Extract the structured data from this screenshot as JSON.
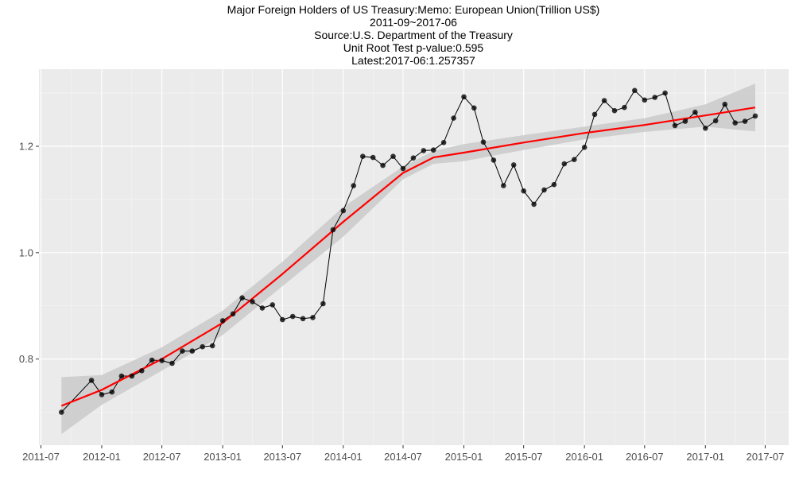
{
  "header": {
    "title_lines": [
      "Major Foreign Holders of US Treasury:Memo: European Union(Trillion US$)",
      "2011-09~2017-06",
      "Source:U.S. Department of the Treasury",
      "Unit Root Test p-value:0.595",
      "Latest:2017-06:1.257357"
    ]
  },
  "colors": {
    "panel_background": "#ebebeb",
    "grid": "#ffffff",
    "series_line": "#000000",
    "points": "#000000",
    "smooth_line": "#ff0000",
    "confidence_band": "#cccccc",
    "tick_text": "#4d4d4d"
  },
  "chart_data": {
    "type": "line",
    "title": "Major Foreign Holders of US Treasury:Memo: European Union(Trillion US$)",
    "subtitle": "2011-09~2017-06",
    "source": "Source:U.S. Department of the Treasury",
    "xlabel": "",
    "ylabel": "",
    "x_axis_type": "date",
    "xlim": [
      "2011-06-25",
      "2017-09-10"
    ],
    "ylim": [
      0.638,
      1.345
    ],
    "x_ticks": [
      "2011-07",
      "2012-01",
      "2012-07",
      "2013-01",
      "2013-07",
      "2014-01",
      "2014-07",
      "2015-01",
      "2015-07",
      "2016-01",
      "2016-07",
      "2017-01",
      "2017-07"
    ],
    "y_ticks": [
      {
        "value": 0.8,
        "label": "0.8"
      },
      {
        "value": 1.0,
        "label": "1.0"
      },
      {
        "value": 1.2,
        "label": "1.2"
      }
    ],
    "grid": true,
    "legend": "none",
    "series": [
      {
        "x": [
          "2011-09",
          "2011-12",
          "2012-01",
          "2012-02",
          "2012-03",
          "2012-04",
          "2012-05",
          "2012-06",
          "2012-07",
          "2012-08",
          "2012-09",
          "2012-10",
          "2012-11",
          "2012-12",
          "2013-01",
          "2013-02",
          "2013-03",
          "2013-04",
          "2013-05",
          "2013-06",
          "2013-07",
          "2013-08",
          "2013-09",
          "2013-10",
          "2013-11",
          "2013-12",
          "2014-01",
          "2014-02",
          "2014-03",
          "2014-04",
          "2014-05",
          "2014-06",
          "2014-07",
          "2014-08",
          "2014-09",
          "2014-10",
          "2014-11",
          "2014-12",
          "2015-01",
          "2015-02",
          "2015-03",
          "2015-04",
          "2015-05",
          "2015-06",
          "2015-07",
          "2015-08",
          "2015-09",
          "2015-10",
          "2015-11",
          "2015-12",
          "2016-01",
          "2016-02",
          "2016-03",
          "2016-04",
          "2016-05",
          "2016-06",
          "2016-07",
          "2016-08",
          "2016-09",
          "2016-10",
          "2016-11",
          "2016-12",
          "2017-01",
          "2017-02",
          "2017-03",
          "2017-04",
          "2017-05",
          "2017-06"
        ],
        "values": [
          0.7,
          0.76,
          0.733,
          0.738,
          0.768,
          0.768,
          0.778,
          0.798,
          0.797,
          0.792,
          0.815,
          0.815,
          0.823,
          0.825,
          0.872,
          0.885,
          0.915,
          0.908,
          0.896,
          0.902,
          0.874,
          0.88,
          0.876,
          0.878,
          0.904,
          1.043,
          1.079,
          1.126,
          1.181,
          1.179,
          1.164,
          1.181,
          1.158,
          1.178,
          1.192,
          1.193,
          1.207,
          1.253,
          1.293,
          1.272,
          1.208,
          1.174,
          1.126,
          1.165,
          1.116,
          1.091,
          1.118,
          1.128,
          1.167,
          1.175,
          1.198,
          1.26,
          1.286,
          1.267,
          1.273,
          1.305,
          1.287,
          1.292,
          1.3,
          1.239,
          1.247,
          1.264,
          1.234,
          1.248,
          1.279,
          1.244,
          1.247,
          1.257
        ]
      },
      {
        "kind": "smooth",
        "x": [
          "2011-09",
          "2012-01",
          "2012-07",
          "2013-01",
          "2013-07",
          "2014-01",
          "2014-07",
          "2014-10",
          "2015-01",
          "2015-07",
          "2016-01",
          "2016-07",
          "2017-01",
          "2017-06"
        ],
        "values": [
          0.712,
          0.742,
          0.8,
          0.868,
          0.96,
          1.058,
          1.15,
          1.179,
          1.188,
          1.207,
          1.225,
          1.24,
          1.258,
          1.273
        ],
        "band_lower": [
          0.659,
          0.714,
          0.778,
          0.845,
          0.937,
          1.03,
          1.138,
          1.167,
          1.172,
          1.193,
          1.213,
          1.227,
          1.237,
          1.228
        ],
        "band_upper": [
          0.766,
          0.77,
          0.822,
          0.891,
          0.983,
          1.086,
          1.162,
          1.191,
          1.204,
          1.221,
          1.237,
          1.253,
          1.279,
          1.318
        ]
      }
    ]
  }
}
